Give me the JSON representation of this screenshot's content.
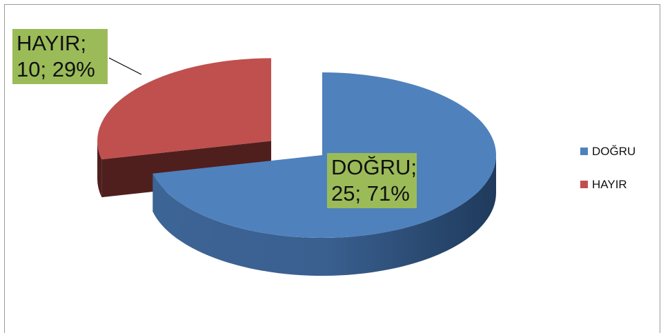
{
  "chart_data": {
    "type": "pie3d",
    "categories": [
      "DOĞRU",
      "HAYIR"
    ],
    "values": [
      25,
      10
    ],
    "value_labels": [
      "DOĞRU; 25; 71%",
      "HAYIR; 10; 29%"
    ],
    "colors": [
      "#4f81bd",
      "#c0504d"
    ],
    "legend": "right"
  }
}
